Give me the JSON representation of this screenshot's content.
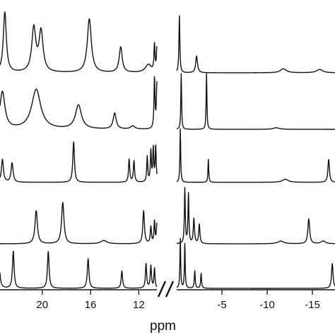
{
  "chart_data": {
    "type": "line",
    "xlabel": "ppm",
    "grid": false,
    "legend": "none",
    "panels": [
      {
        "name": "left",
        "xlim": [
          23.5,
          10.5
        ],
        "reversed": true,
        "ticks": [
          20,
          16,
          12
        ],
        "tick_labels": [
          "20",
          "16",
          "12"
        ]
      },
      {
        "name": "right",
        "xlim": [
          0,
          -17.5
        ],
        "reversed": true,
        "ticks": [
          -5,
          -10,
          -15
        ],
        "tick_labels": [
          "-5",
          "-10",
          "-15"
        ]
      }
    ],
    "series": [
      {
        "panel_left": {
          "peaks": [
            [
              23.1,
              0.9,
              0.15
            ],
            [
              20.7,
              0.65,
              0.2
            ],
            [
              20.1,
              0.6,
              0.2
            ],
            [
              16.1,
              0.8,
              0.2
            ],
            [
              13.5,
              0.38,
              0.15
            ],
            [
              11.2,
              0.12,
              0.3
            ],
            [
              10.7,
              0.4,
              0.05
            ],
            [
              10.5,
              0.35,
              0.05
            ]
          ]
        },
        "panel_right": {
          "peaks": [
            [
              -0.3,
              0.85,
              0.06
            ],
            [
              -2.2,
              0.25,
              0.12
            ],
            [
              -11.8,
              0.06,
              0.4
            ],
            [
              -15.8,
              0.05,
              0.4
            ]
          ]
        }
      },
      {
        "panel_left": {
          "peaks": [
            [
              23.3,
              0.7,
              0.25
            ],
            [
              20.5,
              0.75,
              0.45
            ],
            [
              17.0,
              0.45,
              0.3
            ],
            [
              14.0,
              0.3,
              0.15
            ],
            [
              12.5,
              0.06,
              0.2
            ],
            [
              10.7,
              0.95,
              0.05
            ],
            [
              10.5,
              0.85,
              0.05
            ]
          ]
        },
        "panel_right": {
          "peaks": [
            [
              -0.5,
              1.05,
              0.05
            ],
            [
              -3.3,
              1.05,
              0.05
            ],
            [
              -11.0,
              0.03,
              0.4
            ]
          ]
        }
      },
      {
        "panel_left": {
          "peaks": [
            [
              23.3,
              0.45,
              0.1
            ],
            [
              22.5,
              0.38,
              0.1
            ],
            [
              17.4,
              0.8,
              0.08
            ],
            [
              12.8,
              0.45,
              0.06
            ],
            [
              12.4,
              0.42,
              0.06
            ],
            [
              11.3,
              0.5,
              0.05
            ],
            [
              11.0,
              0.6,
              0.05
            ],
            [
              10.8,
              0.65,
              0.05
            ],
            [
              10.6,
              0.7,
              0.05
            ]
          ]
        },
        "panel_right": {
          "peaks": [
            [
              -0.4,
              1.05,
              0.05
            ],
            [
              -3.5,
              0.45,
              0.05
            ],
            [
              -12.0,
              0.06,
              0.4
            ],
            [
              -16.8,
              0.45,
              0.1
            ]
          ]
        }
      },
      {
        "panel_left": {
          "peaks": [
            [
              20.5,
              0.6,
              0.12
            ],
            [
              18.3,
              0.75,
              0.12
            ],
            [
              14.9,
              0.06,
              0.3
            ],
            [
              11.6,
              0.6,
              0.08
            ],
            [
              11.0,
              0.3,
              0.06
            ],
            [
              10.7,
              0.4,
              0.05
            ],
            [
              10.5,
              0.35,
              0.05
            ]
          ]
        },
        "panel_right": {
          "peaks": [
            [
              -0.9,
              1.0,
              0.06
            ],
            [
              -1.3,
              0.9,
              0.06
            ],
            [
              -1.9,
              0.45,
              0.08
            ],
            [
              -2.5,
              0.35,
              0.08
            ],
            [
              -11.5,
              0.05,
              0.4
            ],
            [
              -14.6,
              0.45,
              0.12
            ],
            [
              -16.2,
              0.05,
              0.3
            ]
          ]
        }
      },
      {
        "panel_left": {
          "peaks": [
            [
              23.6,
              0.8,
              0.08
            ],
            [
              22.4,
              0.75,
              0.08
            ],
            [
              19.5,
              0.75,
              0.08
            ],
            [
              16.2,
              0.6,
              0.08
            ],
            [
              13.4,
              0.35,
              0.07
            ],
            [
              11.4,
              0.5,
              0.06
            ],
            [
              11.0,
              0.45,
              0.06
            ],
            [
              10.7,
              0.4,
              0.05
            ]
          ]
        },
        "panel_right": {
          "peaks": [
            [
              -0.4,
              1.0,
              0.05
            ],
            [
              -0.9,
              0.9,
              0.05
            ],
            [
              -2.0,
              0.35,
              0.06
            ],
            [
              -2.7,
              0.3,
              0.06
            ],
            [
              -17.2,
              0.5,
              0.1
            ]
          ]
        }
      }
    ]
  },
  "axis": {
    "unit_label": "ppm"
  }
}
